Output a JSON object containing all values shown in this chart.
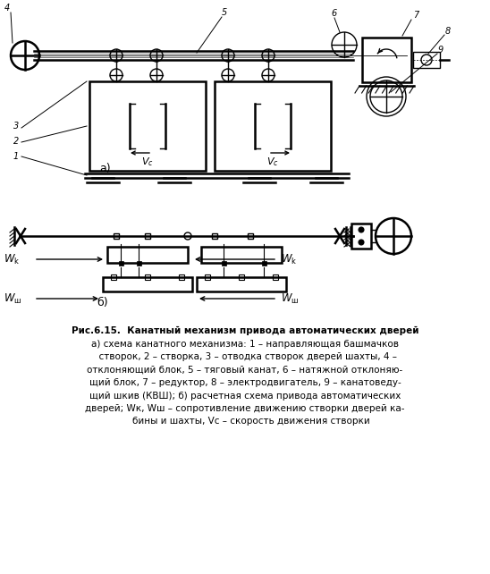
{
  "bg_color": "#ffffff",
  "black": "#000000",
  "fig_w": 5.48,
  "fig_h": 6.42,
  "dpi": 100,
  "caption": [
    "Рис.6.15.  Канатный механизм привода автоматических дверей",
    "а) схема канатного механизма: – направляющая башмачков ство-",
    "рок, – створка, – отводка створок дверей шахты, – от-",
    "клоняющий блок, – тяговый канат, – натяжной отклоняющий",
    "блок, – редуктор, – электродвигатель, – канатоведущий шкив",
    "(КВШ); б) расчетная схема привода автоматических дверей;",
    "Wк, Wш – сопротивление движению створки дверей кабины и шахты,",
    "Vс – скорость движения створки"
  ]
}
